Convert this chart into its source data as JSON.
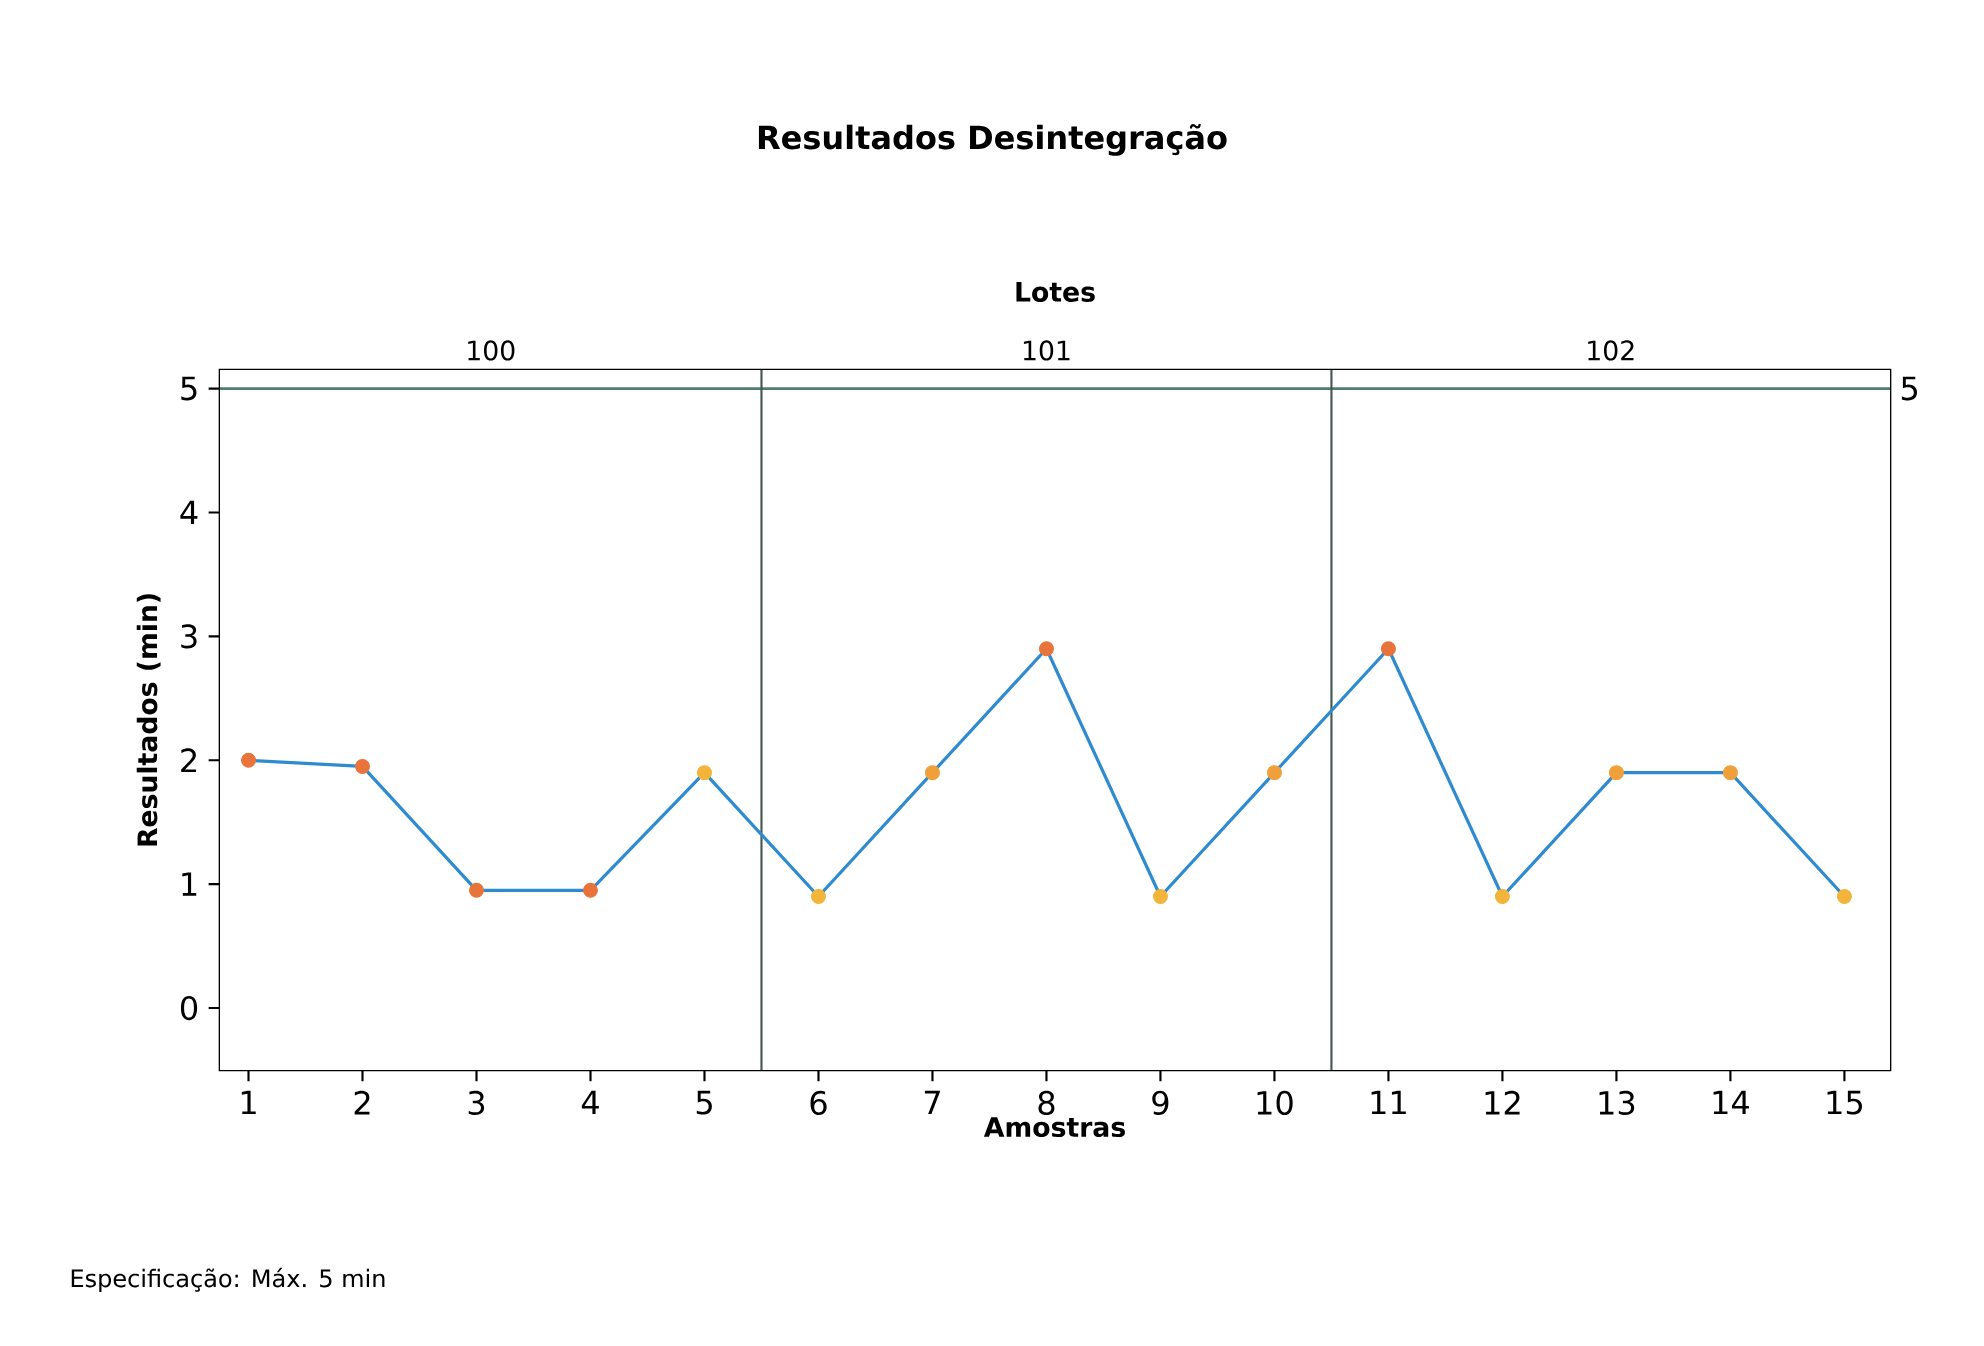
{
  "chart_data": {
    "type": "line",
    "title": "Resultados Desintegração",
    "xlabel": "Amostras",
    "ylabel": "Resultados (min)",
    "x2label": "Lotes",
    "x": [
      1,
      2,
      3,
      4,
      5,
      6,
      7,
      8,
      9,
      10,
      11,
      12,
      13,
      14,
      15
    ],
    "series": [
      {
        "color": "#2e8bd0",
        "values": [
          2.0,
          1.95,
          0.95,
          0.95,
          1.9,
          0.9,
          1.9,
          2.9,
          0.9,
          1.9,
          2.9,
          0.9,
          1.9,
          1.9,
          0.9
        ],
        "colors": [
          "#e8743b",
          "#e8743b",
          "#e8743b",
          "#e8743b",
          "#f2b43a",
          "#f2b43a",
          "#f0a03a",
          "#e8743b",
          "#f2b43a",
          "#f0a03a",
          "#e8743b",
          "#f2b43a",
          "#f0a03a",
          "#f0a03a",
          "#f2b43a"
        ]
      }
    ],
    "marker": "circle",
    "line_style": "solid",
    "xlim": [
      0.75,
      15.4
    ],
    "xticks": [
      1,
      2,
      3,
      4,
      5,
      6,
      7,
      8,
      9,
      10,
      11,
      12,
      13,
      14,
      15
    ],
    "ylim": [
      -0.5,
      5.15
    ],
    "yticks": [
      0,
      1,
      2,
      3,
      4,
      5
    ],
    "bands": [
      {
        "axis": "x",
        "from": 0.75,
        "to": 5.5,
        "label": "100",
        "color": "#ffffff"
      },
      {
        "axis": "x",
        "from": 5.5,
        "to": 10.5,
        "label": "101",
        "color": "#ffffff"
      },
      {
        "axis": "x",
        "from": 10.5,
        "to": 15.4,
        "label": "102",
        "color": "#ffffff"
      }
    ],
    "ref_lines": [
      {
        "axis": "y",
        "value": 5,
        "label": "5",
        "color": "#4e7f6e"
      },
      {
        "axis": "x",
        "value": 5.5,
        "color": "#44594f"
      },
      {
        "axis": "x",
        "value": 10.5,
        "color": "#44594f"
      }
    ],
    "annotations": [
      "Especificação: Máx. 5 min"
    ]
  }
}
